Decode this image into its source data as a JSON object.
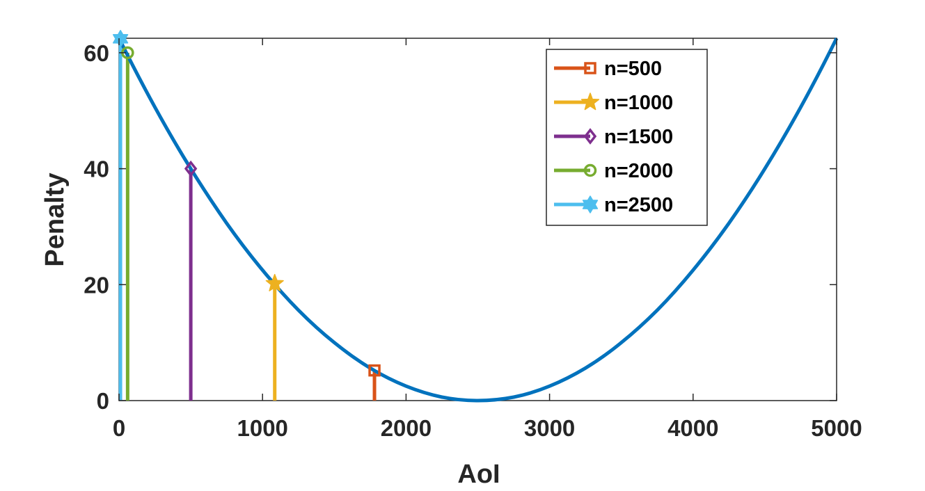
{
  "chart_data": {
    "type": "line",
    "xlabel": "AoI",
    "ylabel": "Penalty",
    "xlim": [
      0,
      5000
    ],
    "ylim": [
      0,
      62.5
    ],
    "x_ticks": [
      0,
      1000,
      2000,
      3000,
      4000,
      5000
    ],
    "y_ticks": [
      0,
      20,
      40,
      60
    ],
    "x_tick_labels": [
      "0",
      "1000",
      "2000",
      "3000",
      "4000",
      "5000"
    ],
    "y_tick_labels": [
      "0",
      "20",
      "40",
      "60"
    ],
    "grid": false,
    "legend_position": "top-right",
    "curve": {
      "x": [
        0,
        250,
        500,
        750,
        1000,
        1250,
        1500,
        1750,
        2000,
        2250,
        2500,
        2750,
        3000,
        3250,
        3500,
        3750,
        4000,
        4250,
        4500,
        4750,
        5000
      ],
      "y": [
        62.5,
        50.6,
        40.0,
        30.6,
        22.5,
        15.6,
        10.0,
        5.6,
        2.5,
        0.6,
        0,
        0.6,
        2.5,
        5.6,
        10.0,
        15.6,
        22.5,
        30.6,
        40.0,
        50.6,
        62.5
      ],
      "color": "#0072BD"
    },
    "series": [
      {
        "name": "n=500",
        "x": 1780,
        "y": 5.2,
        "color": "#D95319",
        "marker": "square"
      },
      {
        "name": "n=1000",
        "x": 1085,
        "y": 20.2,
        "color": "#EDB120",
        "marker": "star"
      },
      {
        "name": "n=1500",
        "x": 500,
        "y": 40.0,
        "color": "#7E2F8E",
        "marker": "diamond"
      },
      {
        "name": "n=2000",
        "x": 60,
        "y": 60.0,
        "color": "#77AC30",
        "marker": "circle"
      },
      {
        "name": "n=2500",
        "x": 10,
        "y": 62.4,
        "color": "#4DBEEE",
        "marker": "hexagram"
      }
    ]
  }
}
